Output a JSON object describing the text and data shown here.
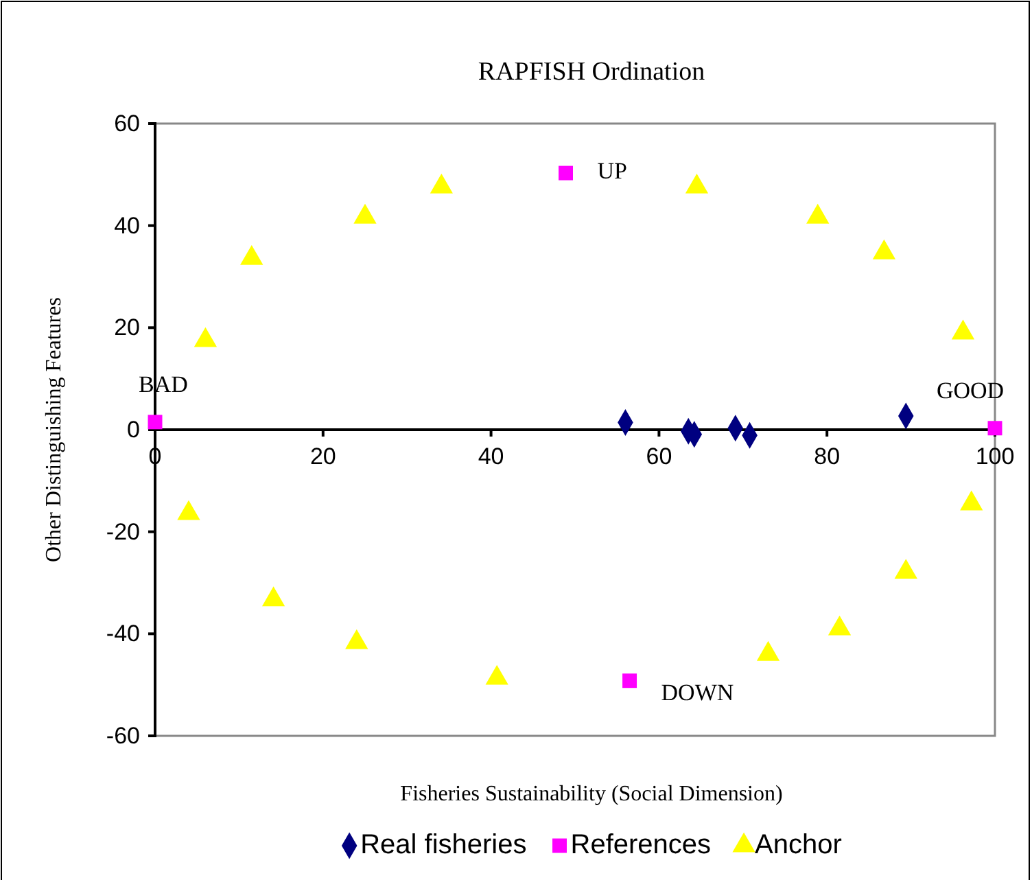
{
  "chart_data": {
    "type": "scatter",
    "title": "RAPFISH Ordination",
    "xlabel": "Fisheries Sustainability (Social Dimension)",
    "ylabel": "Other Distinguishing Features",
    "xlim": [
      0,
      100
    ],
    "ylim": [
      -60,
      60
    ],
    "xticks": [
      0,
      20,
      40,
      60,
      80,
      100
    ],
    "yticks": [
      -60,
      -40,
      -20,
      0,
      20,
      40,
      60
    ],
    "grid": false,
    "legend": "bottom",
    "series": [
      {
        "name": "Real fisheries",
        "color": "#000080",
        "marker": "diamond",
        "x": [
          56,
          63.5,
          64.2,
          69.1,
          70.8,
          89.4
        ],
        "values": [
          1.4,
          -0.3,
          -0.9,
          0.3,
          -1.1,
          2.7
        ]
      },
      {
        "name": "References",
        "color": "#ff00ff",
        "marker": "square",
        "x": [
          0,
          100,
          48.9,
          56.5
        ],
        "values": [
          1.5,
          0.3,
          50.3,
          -49.2
        ]
      },
      {
        "name": "Anchor",
        "color": "#ffff00",
        "marker": "triangle",
        "x": [
          6,
          11.5,
          25,
          34.1,
          64.5,
          78.9,
          86.8,
          96.2,
          4,
          14.1,
          24,
          40.7,
          73,
          81.5,
          89.4,
          97.2
        ],
        "values": [
          17.5,
          33.6,
          41.7,
          47.6,
          47.6,
          41.7,
          34.7,
          19,
          -16.4,
          -33.3,
          -41.7,
          -48.7,
          -44,
          -39,
          -27.9,
          -14.5
        ]
      }
    ],
    "annotations": [
      {
        "text": "BAD",
        "x": 0,
        "y": 1.5
      },
      {
        "text": "GOOD",
        "x": 100,
        "y": 0.3
      },
      {
        "text": "UP",
        "x": 48.9,
        "y": 50.3
      },
      {
        "text": "DOWN",
        "x": 56.5,
        "y": -49.2
      }
    ]
  }
}
